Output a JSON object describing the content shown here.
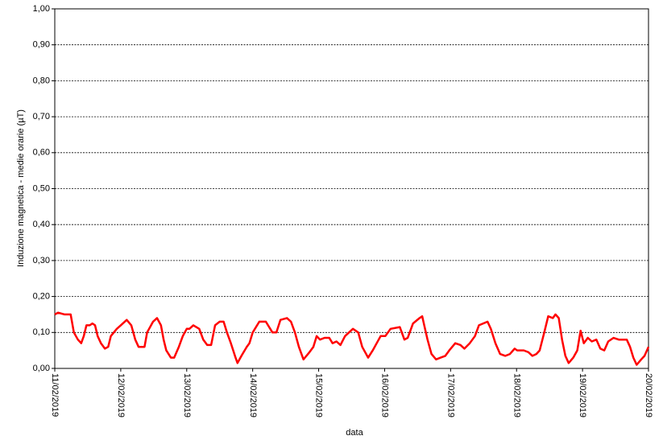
{
  "chart_data": {
    "type": "line",
    "y_label": "Induzione magnetica - medie orarie (µT)",
    "x_label": "data",
    "color": "#ff0000",
    "grid": true,
    "xlim": [
      0,
      9
    ],
    "ylim": [
      0,
      1
    ],
    "xticks": [
      {
        "value": 0,
        "label": "11/02/2019"
      },
      {
        "value": 1,
        "label": "12/02/2019"
      },
      {
        "value": 2,
        "label": "13/02/2019"
      },
      {
        "value": 3,
        "label": "14/02/2019"
      },
      {
        "value": 4,
        "label": "15/02/2019"
      },
      {
        "value": 5,
        "label": "16/02/2019"
      },
      {
        "value": 6,
        "label": "17/02/2019"
      },
      {
        "value": 7,
        "label": "18/02/2019"
      },
      {
        "value": 8,
        "label": "19/02/2019"
      },
      {
        "value": 9,
        "label": "20/02/2019"
      }
    ],
    "yticks": [
      {
        "value": 0,
        "label": "0,00"
      },
      {
        "value": 0.1,
        "label": "0,10"
      },
      {
        "value": 0.2,
        "label": "0,20"
      },
      {
        "value": 0.3,
        "label": "0,30"
      },
      {
        "value": 0.4,
        "label": "0,40"
      },
      {
        "value": 0.5,
        "label": "0,50"
      },
      {
        "value": 0.6,
        "label": "0,60"
      },
      {
        "value": 0.7,
        "label": "0,70"
      },
      {
        "value": 0.8,
        "label": "0,80"
      },
      {
        "value": 0.9,
        "label": "0,90"
      },
      {
        "value": 1,
        "label": "1,00"
      }
    ],
    "x": [
      0,
      0.05,
      0.15,
      0.24,
      0.29,
      0.35,
      0.4,
      0.44,
      0.48,
      0.53,
      0.57,
      0.61,
      0.65,
      0.7,
      0.76,
      0.81,
      0.85,
      0.94,
      1.0,
      1.09,
      1.16,
      1.22,
      1.27,
      1.36,
      1.4,
      1.49,
      1.55,
      1.61,
      1.65,
      1.69,
      1.76,
      1.81,
      1.88,
      1.94,
      2.0,
      2.04,
      2.1,
      2.19,
      2.25,
      2.31,
      2.37,
      2.43,
      2.5,
      2.56,
      2.61,
      2.67,
      2.74,
      2.77,
      2.83,
      2.91,
      2.95,
      3.0,
      3.1,
      3.2,
      3.3,
      3.36,
      3.42,
      3.52,
      3.58,
      3.64,
      3.7,
      3.77,
      3.86,
      3.92,
      3.97,
      4.02,
      4.09,
      4.16,
      4.21,
      4.27,
      4.33,
      4.4,
      4.46,
      4.52,
      4.6,
      4.66,
      4.75,
      4.82,
      4.88,
      4.94,
      5.01,
      5.09,
      5.23,
      5.3,
      5.35,
      5.43,
      5.53,
      5.57,
      5.6,
      5.65,
      5.71,
      5.78,
      5.85,
      5.92,
      5.98,
      6.07,
      6.15,
      6.21,
      6.29,
      6.37,
      6.43,
      6.56,
      6.61,
      6.68,
      6.75,
      6.83,
      6.9,
      6.97,
      7.01,
      7.11,
      7.18,
      7.24,
      7.3,
      7.35,
      7.42,
      7.48,
      7.55,
      7.59,
      7.64,
      7.69,
      7.74,
      7.79,
      7.86,
      7.92,
      7.97,
      8.02,
      8.08,
      8.14,
      8.21,
      8.27,
      8.33,
      8.39,
      8.47,
      8.55,
      8.62,
      8.67,
      8.72,
      8.77,
      8.82,
      8.89,
      8.94,
      9.0
    ],
    "values": [
      0.15,
      0.155,
      0.15,
      0.15,
      0.1,
      0.08,
      0.07,
      0.09,
      0.12,
      0.12,
      0.125,
      0.12,
      0.09,
      0.07,
      0.055,
      0.06,
      0.09,
      0.11,
      0.12,
      0.135,
      0.12,
      0.08,
      0.06,
      0.06,
      0.1,
      0.13,
      0.14,
      0.12,
      0.08,
      0.05,
      0.03,
      0.03,
      0.06,
      0.09,
      0.11,
      0.11,
      0.12,
      0.11,
      0.08,
      0.065,
      0.065,
      0.12,
      0.13,
      0.13,
      0.1,
      0.07,
      0.03,
      0.015,
      0.035,
      0.06,
      0.07,
      0.1,
      0.13,
      0.13,
      0.1,
      0.1,
      0.135,
      0.14,
      0.13,
      0.1,
      0.06,
      0.025,
      0.045,
      0.06,
      0.09,
      0.08,
      0.085,
      0.085,
      0.07,
      0.075,
      0.065,
      0.09,
      0.1,
      0.11,
      0.1,
      0.06,
      0.03,
      0.05,
      0.07,
      0.09,
      0.09,
      0.11,
      0.115,
      0.08,
      0.085,
      0.125,
      0.14,
      0.145,
      0.12,
      0.08,
      0.04,
      0.025,
      0.03,
      0.035,
      0.05,
      0.07,
      0.065,
      0.055,
      0.07,
      0.09,
      0.12,
      0.13,
      0.11,
      0.07,
      0.04,
      0.035,
      0.04,
      0.055,
      0.05,
      0.05,
      0.045,
      0.035,
      0.04,
      0.05,
      0.1,
      0.145,
      0.14,
      0.15,
      0.14,
      0.08,
      0.035,
      0.015,
      0.03,
      0.05,
      0.105,
      0.07,
      0.085,
      0.075,
      0.08,
      0.055,
      0.05,
      0.075,
      0.085,
      0.08,
      0.08,
      0.08,
      0.06,
      0.03,
      0.01,
      0.025,
      0.035,
      0.06
    ]
  }
}
